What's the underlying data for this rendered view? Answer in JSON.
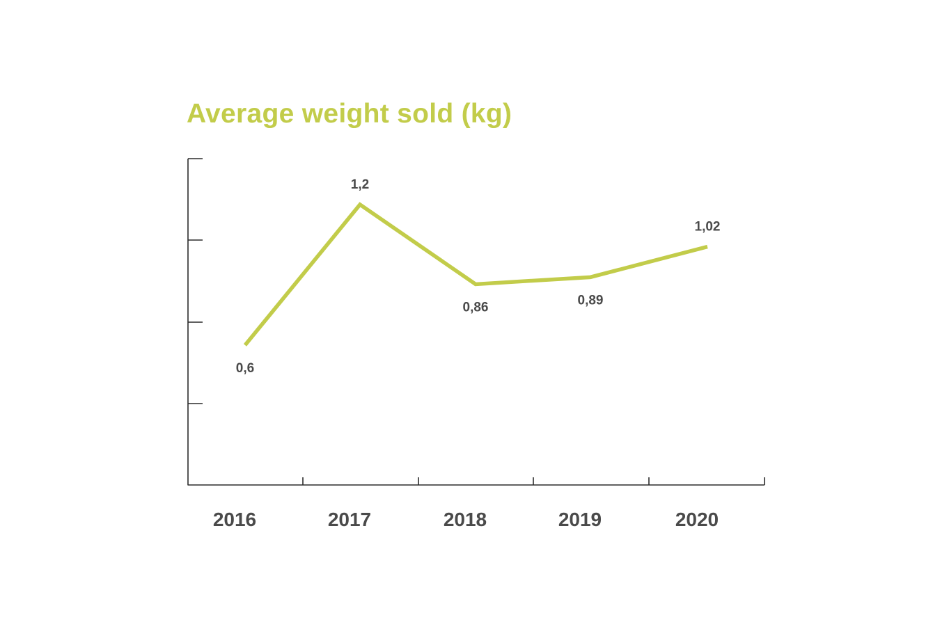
{
  "colors": {
    "accent": "#c2cc4a",
    "axis": "#2b2b2b",
    "text": "#4a4a4a",
    "background": "#ffffff"
  },
  "chart_data": {
    "type": "line",
    "title": "Average weight sold (kg)",
    "xlabel": "",
    "ylabel": "",
    "categories": [
      "2016",
      "2017",
      "2018",
      "2019",
      "2020"
    ],
    "series": [
      {
        "values": [
          0.6,
          1.2,
          0.86,
          0.89,
          1.02
        ],
        "labels": [
          "0,6",
          "1,2",
          "0,86",
          "0,89",
          "1,02"
        ],
        "label_positions": [
          "below",
          "above",
          "below",
          "below",
          "above"
        ]
      }
    ],
    "y_axis_tick_labels": "none",
    "grid": false,
    "legend": "none"
  }
}
